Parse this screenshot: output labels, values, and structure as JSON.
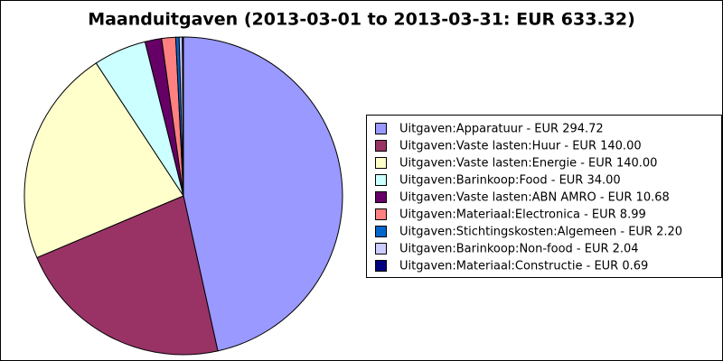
{
  "chart_data": {
    "type": "pie",
    "title": "Maanduitgaven (2013-03-01 to 2013-03-31: EUR 633.32)",
    "categories": [
      "Uitgaven:Apparatuur - EUR 294.72",
      "Uitgaven:Vaste lasten:Huur - EUR 140.00",
      "Uitgaven:Vaste lasten:Energie - EUR 140.00",
      "Uitgaven:Barinkoop:Food - EUR 34.00",
      "Uitgaven:Vaste lasten:ABN AMRO - EUR 10.68",
      "Uitgaven:Materiaal:Electronica - EUR 8.99",
      "Uitgaven:Stichtingskosten:Algemeen - EUR 2.20",
      "Uitgaven:Barinkoop:Non-food - EUR 2.04",
      "Uitgaven:Materiaal:Constructie - EUR 0.69"
    ],
    "values": [
      294.72,
      140.0,
      140.0,
      34.0,
      10.68,
      8.99,
      2.2,
      2.04,
      0.69
    ],
    "colors": [
      "#9999ff",
      "#993366",
      "#ffffcc",
      "#ccffff",
      "#660066",
      "#ff8080",
      "#0066cc",
      "#ccccff",
      "#000080"
    ],
    "legend": "right"
  }
}
